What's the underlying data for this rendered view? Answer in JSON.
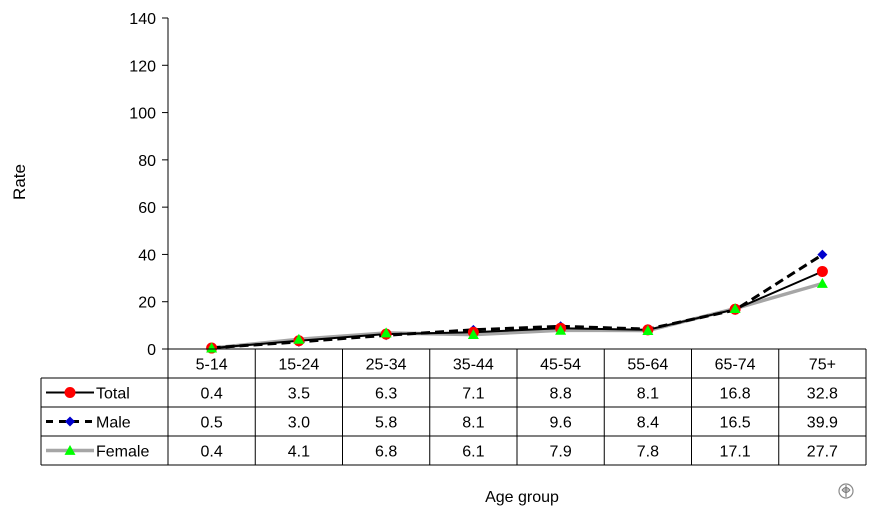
{
  "chart_data": {
    "type": "line",
    "title": "",
    "xlabel": "Age group",
    "ylabel": "Rate",
    "ylim": [
      0,
      140
    ],
    "yticks": [
      0,
      20,
      40,
      60,
      80,
      100,
      120,
      140
    ],
    "grid": false,
    "legend": "data-table-left",
    "categories": [
      "5-14",
      "15-24",
      "25-34",
      "35-44",
      "45-54",
      "55-64",
      "65-74",
      "75+"
    ],
    "series": [
      {
        "name": "Total",
        "values": [
          0.4,
          3.5,
          6.3,
          7.1,
          8.8,
          8.1,
          16.8,
          32.8
        ],
        "labels": [
          "0.4",
          "3.5",
          "6.3",
          "7.1",
          "8.8",
          "8.1",
          "16.8",
          "32.8"
        ],
        "color": "#000000",
        "marker_color": "#ff0000",
        "marker": "circle",
        "line_style": "solid"
      },
      {
        "name": "Male",
        "values": [
          0.5,
          3.0,
          5.8,
          8.1,
          9.6,
          8.4,
          16.5,
          39.9
        ],
        "labels": [
          "0.5",
          "3.0",
          "5.8",
          "8.1",
          "9.6",
          "8.4",
          "16.5",
          "39.9"
        ],
        "color": "#000000",
        "marker_color": "#0000cc",
        "marker": "diamond",
        "line_style": "dashed"
      },
      {
        "name": "Female",
        "values": [
          0.4,
          4.1,
          6.8,
          6.1,
          7.9,
          7.8,
          17.1,
          27.7
        ],
        "labels": [
          "0.4",
          "4.1",
          "6.8",
          "6.1",
          "7.9",
          "7.8",
          "17.1",
          "27.7"
        ],
        "color": "#a6a6a6",
        "marker_color": "#00ff00",
        "marker": "triangle",
        "line_style": "solid"
      }
    ]
  },
  "icons": {
    "corner": "who-emblem-icon"
  }
}
